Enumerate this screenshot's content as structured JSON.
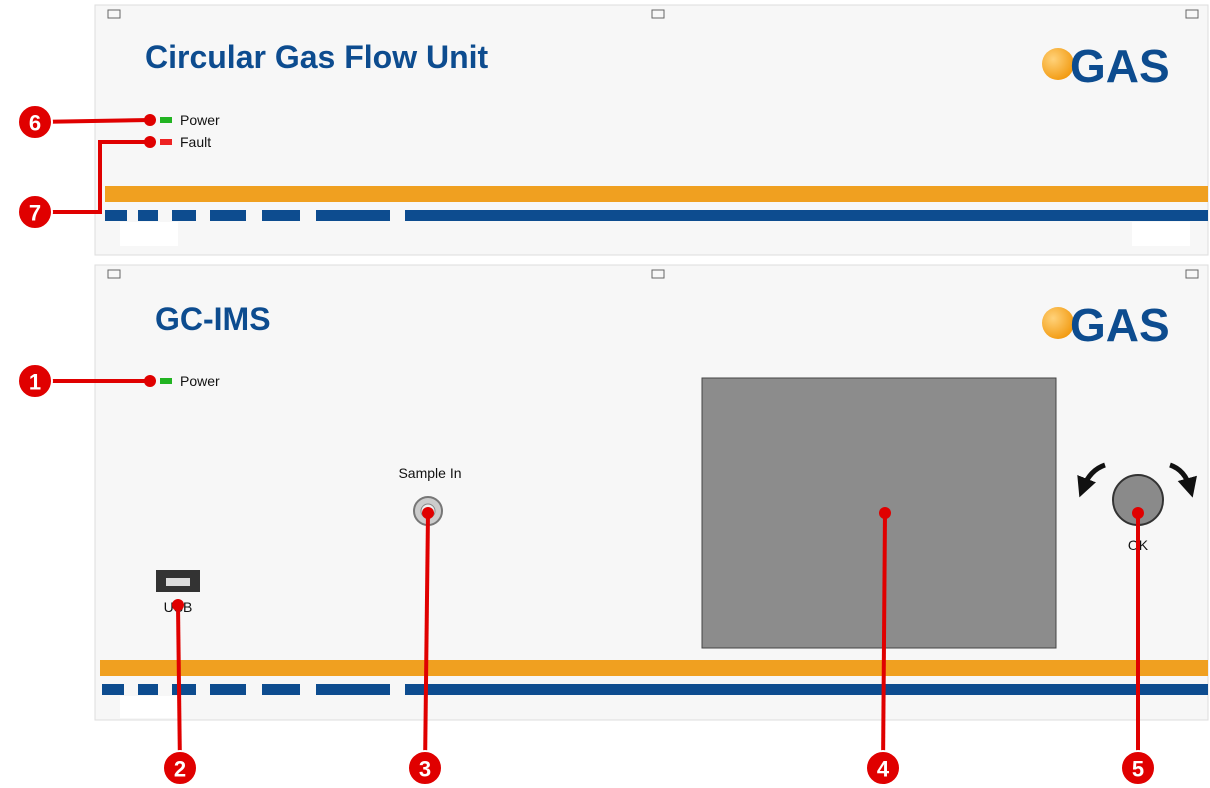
{
  "panels": [
    {
      "title": "Circular Gas Flow Unit",
      "logo": "GAS",
      "indicators": [
        "Power",
        "Fault"
      ]
    },
    {
      "title": "GC-IMS",
      "logo": "GAS",
      "indicators": [
        "Power"
      ],
      "sample_port": "Sample In",
      "usb_port": "USB",
      "knob": "OK"
    }
  ],
  "callouts": [
    1,
    2,
    3,
    4,
    5,
    6,
    7
  ]
}
